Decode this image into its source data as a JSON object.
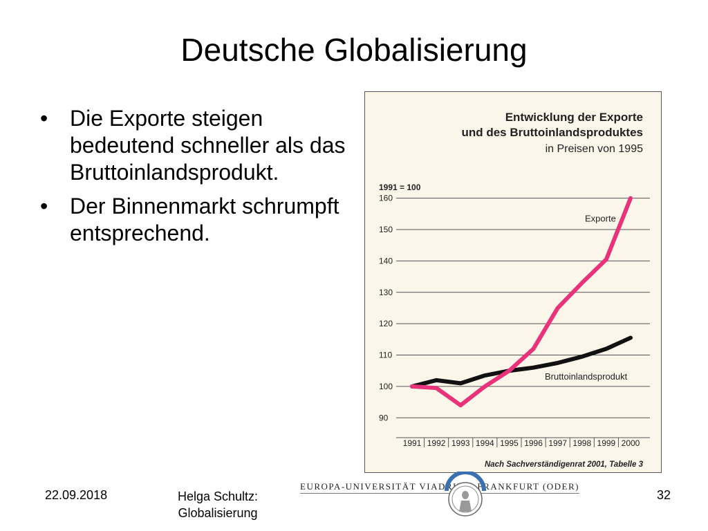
{
  "slide": {
    "title": "Deutsche Globalisierung",
    "bullets": [
      "Die Exporte steigen bedeutend schneller als das Bruttoinlandsprodukt.",
      "Der Binnenmarkt schrumpft entsprechend."
    ],
    "bullet_symbol": "•"
  },
  "footer": {
    "date": "22.09.2018",
    "author_line1": "Helga Schultz:",
    "author_line2": "Globalisierung",
    "page": "32",
    "university_left": "EUROPA-UNIVERSITÄT VIADRINA",
    "university_right": "FRANKFURT (ODER)"
  },
  "colors": {
    "exports_line": "#e8337a",
    "gdp_line": "#111111",
    "chart_background": "#fbf6ea",
    "seal": "#3a6fb0"
  },
  "chart_data": {
    "type": "line",
    "title": "Entwicklung der Exporte und des Bruttoinlandsproduktes",
    "title_line1": "Entwicklung der Exporte",
    "title_line2": "und des Bruttoinlandsproduktes",
    "subtitle": "in Preisen von 1995",
    "index_note": "1991 = 100",
    "source": "Nach Sachverständigenrat 2001, Tabelle 3",
    "x": [
      "1991",
      "1992",
      "1993",
      "1994",
      "1995",
      "1996",
      "1997",
      "1998",
      "1999",
      "2000"
    ],
    "yticks": [
      90,
      100,
      110,
      120,
      130,
      140,
      150,
      160
    ],
    "ylim": [
      85,
      163
    ],
    "grid": true,
    "series": [
      {
        "name": "Exporte",
        "color": "#e8337a",
        "values": [
          100,
          99.5,
          94,
          100,
          105,
          112,
          125,
          133,
          140.5,
          160
        ]
      },
      {
        "name": "Bruttoinlandsprodukt",
        "color": "#111111",
        "values": [
          100,
          102,
          101,
          103.5,
          105,
          106,
          107.5,
          109.5,
          112,
          115.5
        ]
      }
    ]
  }
}
